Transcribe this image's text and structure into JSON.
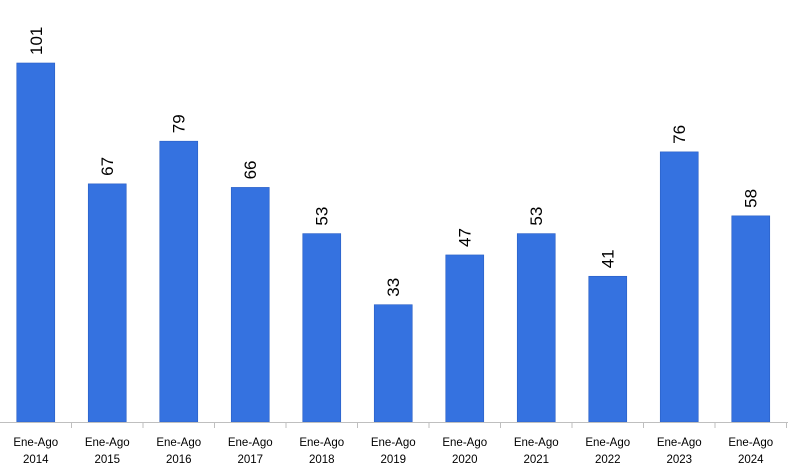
{
  "chart_data": {
    "type": "bar",
    "title": "",
    "xlabel": "",
    "ylabel": "",
    "categories": [
      [
        "Ene-Ago",
        "2014"
      ],
      [
        "Ene-Ago",
        "2015"
      ],
      [
        "Ene-Ago",
        "2016"
      ],
      [
        "Ene-Ago",
        "2017"
      ],
      [
        "Ene-Ago",
        "2018"
      ],
      [
        "Ene-Ago",
        "2019"
      ],
      [
        "Ene-Ago",
        "2020"
      ],
      [
        "Ene-Ago",
        "2021"
      ],
      [
        "Ene-Ago",
        "2022"
      ],
      [
        "Ene-Ago",
        "2023"
      ],
      [
        "Ene-Ago",
        "2024"
      ]
    ],
    "values": [
      101,
      67,
      79,
      66,
      53,
      33,
      47,
      53,
      41,
      76,
      58
    ],
    "ylim": [
      0,
      101
    ],
    "grid": false,
    "legend": "none",
    "data_labels": true,
    "bar_color": "#3572E0",
    "axis_color": "#BFBFBF"
  }
}
